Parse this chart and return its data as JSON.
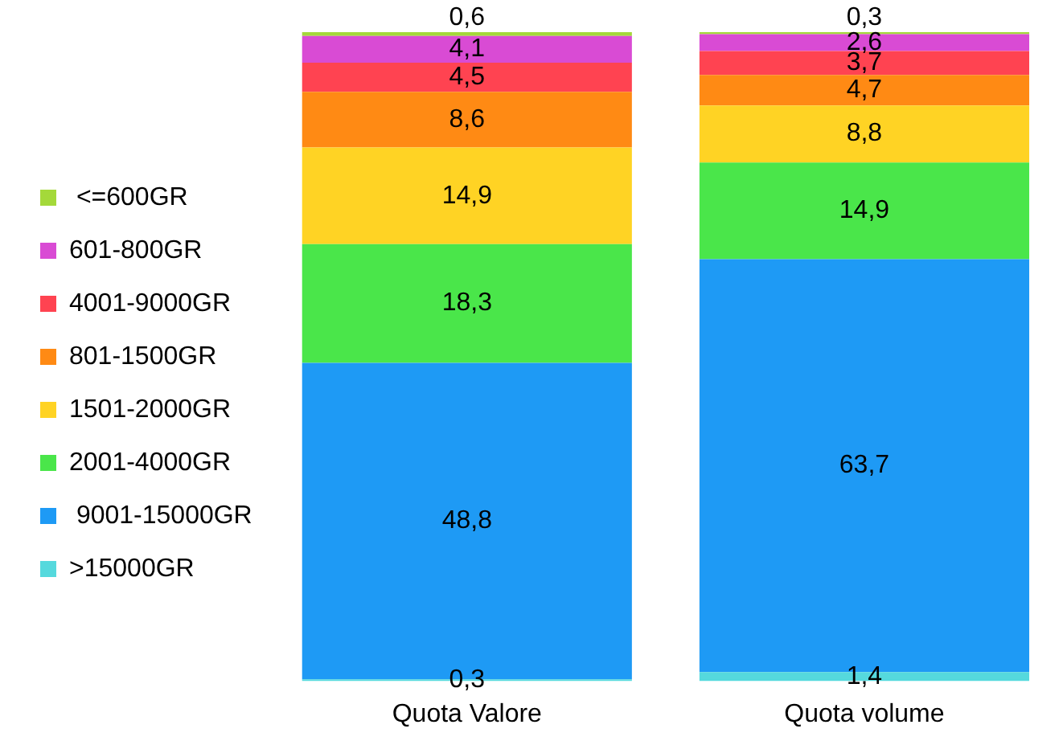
{
  "chart_data": {
    "type": "bar",
    "stacked": true,
    "legend": "left",
    "categories": [
      "Quota Valore",
      "Quota volume"
    ],
    "series": [
      {
        "name": ">15000GR",
        "color": "#55d9dd",
        "values": [
          0.3,
          1.4
        ],
        "value_labels": [
          "0,3",
          "1,4"
        ]
      },
      {
        "name": " 9001-15000GR",
        "color": "#1e9af5",
        "values": [
          48.8,
          63.7
        ],
        "value_labels": [
          "48,8",
          "63,7"
        ]
      },
      {
        "name": "2001-4000GR",
        "color": "#4ae64a",
        "values": [
          18.3,
          14.9
        ],
        "value_labels": [
          "18,3",
          "14,9"
        ]
      },
      {
        "name": "1501-2000GR",
        "color": "#ffd324",
        "values": [
          14.9,
          8.8
        ],
        "value_labels": [
          "14,9",
          "8,8"
        ]
      },
      {
        "name": "801-1500GR",
        "color": "#ff8a14",
        "values": [
          8.6,
          4.7
        ],
        "value_labels": [
          "8,6",
          "4,7"
        ]
      },
      {
        "name": "4001-9000GR",
        "color": "#ff4351",
        "values": [
          4.5,
          3.7
        ],
        "value_labels": [
          "4,5",
          "3,7"
        ]
      },
      {
        "name": "601-800GR",
        "color": "#d94bd4",
        "values": [
          4.1,
          2.6
        ],
        "value_labels": [
          "4,1",
          "2,6"
        ]
      },
      {
        "name": " <=600GR",
        "color": "#a4d93a",
        "values": [
          0.6,
          0.3
        ],
        "value_labels": [
          "0,6",
          "0,3"
        ]
      }
    ]
  }
}
